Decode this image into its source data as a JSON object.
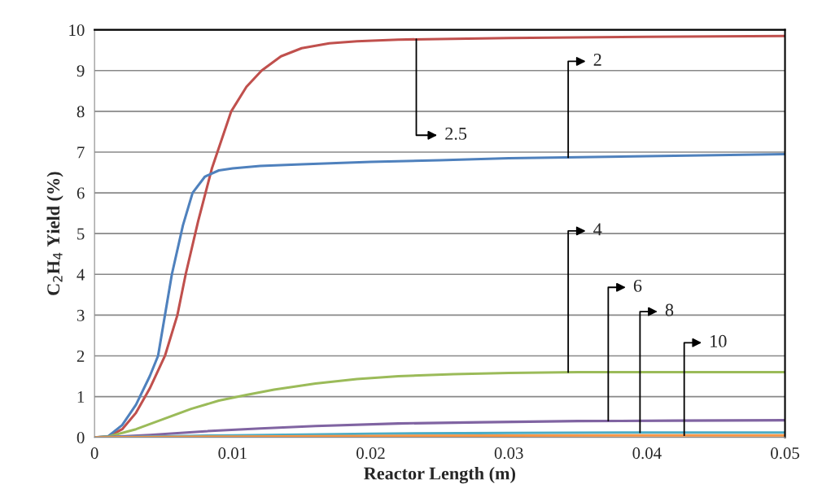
{
  "chart_data": {
    "type": "line",
    "xlabel": "Reactor Length (m)",
    "ylabel": "C$_{2}$H$_{4}$ Yield (%)",
    "xlim": [
      0,
      0.05
    ],
    "xticks": [
      0,
      0.01,
      0.02,
      0.03,
      0.04,
      0.05
    ],
    "ylim": [
      0,
      10
    ],
    "yticks": [
      0,
      1,
      2,
      3,
      4,
      5,
      6,
      7,
      8,
      9,
      10
    ],
    "grid": "y",
    "marker": "none",
    "line_style": "solid",
    "series": [
      {
        "color": "#c0504d",
        "x": [
          0,
          0.001,
          0.002,
          0.003,
          0.004,
          0.0051,
          0.006,
          0.0066,
          0.0075,
          0.0085,
          0.0099,
          0.011,
          0.0121,
          0.0135,
          0.015,
          0.017,
          0.019,
          0.022,
          0.026,
          0.03,
          0.04,
          0.05
        ],
        "values": [
          0,
          0.02,
          0.2,
          0.6,
          1.2,
          2,
          3,
          4,
          5.3,
          6.6,
          8,
          8.6,
          9,
          9.35,
          9.55,
          9.67,
          9.72,
          9.76,
          9.78,
          9.8,
          9.83,
          9.85
        ]
      },
      {
        "color": "#4f81bd",
        "x": [
          0,
          0.001,
          0.002,
          0.003,
          0.004,
          0.0046,
          0.0051,
          0.0056,
          0.0064,
          0.0071,
          0.008,
          0.009,
          0.01,
          0.012,
          0.015,
          0.02,
          0.025,
          0.03,
          0.04,
          0.05
        ],
        "values": [
          0,
          0.03,
          0.3,
          0.8,
          1.5,
          2,
          3,
          4,
          5.2,
          6,
          6.4,
          6.55,
          6.6,
          6.66,
          6.7,
          6.76,
          6.8,
          6.85,
          6.9,
          6.95
        ]
      },
      {
        "color": "#9bbb59",
        "x": [
          0,
          0.001,
          0.003,
          0.005,
          0.007,
          0.009,
          0.011,
          0.013,
          0.016,
          0.019,
          0.022,
          0.026,
          0.03,
          0.035,
          0.04,
          0.05
        ],
        "values": [
          0,
          0.02,
          0.2,
          0.45,
          0.7,
          0.9,
          1.04,
          1.17,
          1.32,
          1.43,
          1.5,
          1.55,
          1.58,
          1.6,
          1.6,
          1.6
        ]
      },
      {
        "color": "#8064a2",
        "x": [
          0,
          0.001,
          0.004,
          0.008,
          0.012,
          0.016,
          0.022,
          0.028,
          0.035,
          0.042,
          0.05
        ],
        "values": [
          0,
          0.01,
          0.06,
          0.15,
          0.22,
          0.28,
          0.34,
          0.37,
          0.4,
          0.41,
          0.42
        ]
      },
      {
        "color": "#4bacc6",
        "x": [
          0,
          0.002,
          0.01,
          0.02,
          0.03,
          0.04,
          0.05
        ],
        "values": [
          0,
          0.01,
          0.05,
          0.09,
          0.11,
          0.12,
          0.12
        ]
      },
      {
        "color": "#f79646",
        "x": [
          0,
          0.002,
          0.01,
          0.02,
          0.03,
          0.04,
          0.05
        ],
        "values": [
          0,
          0.005,
          0.02,
          0.035,
          0.045,
          0.05,
          0.05
        ]
      }
    ],
    "annotations": [
      {
        "text": "2.5",
        "x": 0.0233,
        "y": 9.77
      },
      {
        "text": "2",
        "x": 0.0343,
        "y": 6.87
      },
      {
        "text": "4",
        "x": 0.0343,
        "y": 1.6
      },
      {
        "text": "6",
        "x": 0.0372,
        "y": 0.41
      },
      {
        "text": "8",
        "x": 0.0395,
        "y": 0.12
      },
      {
        "text": "10",
        "x": 0.0427,
        "y": 0.05
      }
    ]
  }
}
